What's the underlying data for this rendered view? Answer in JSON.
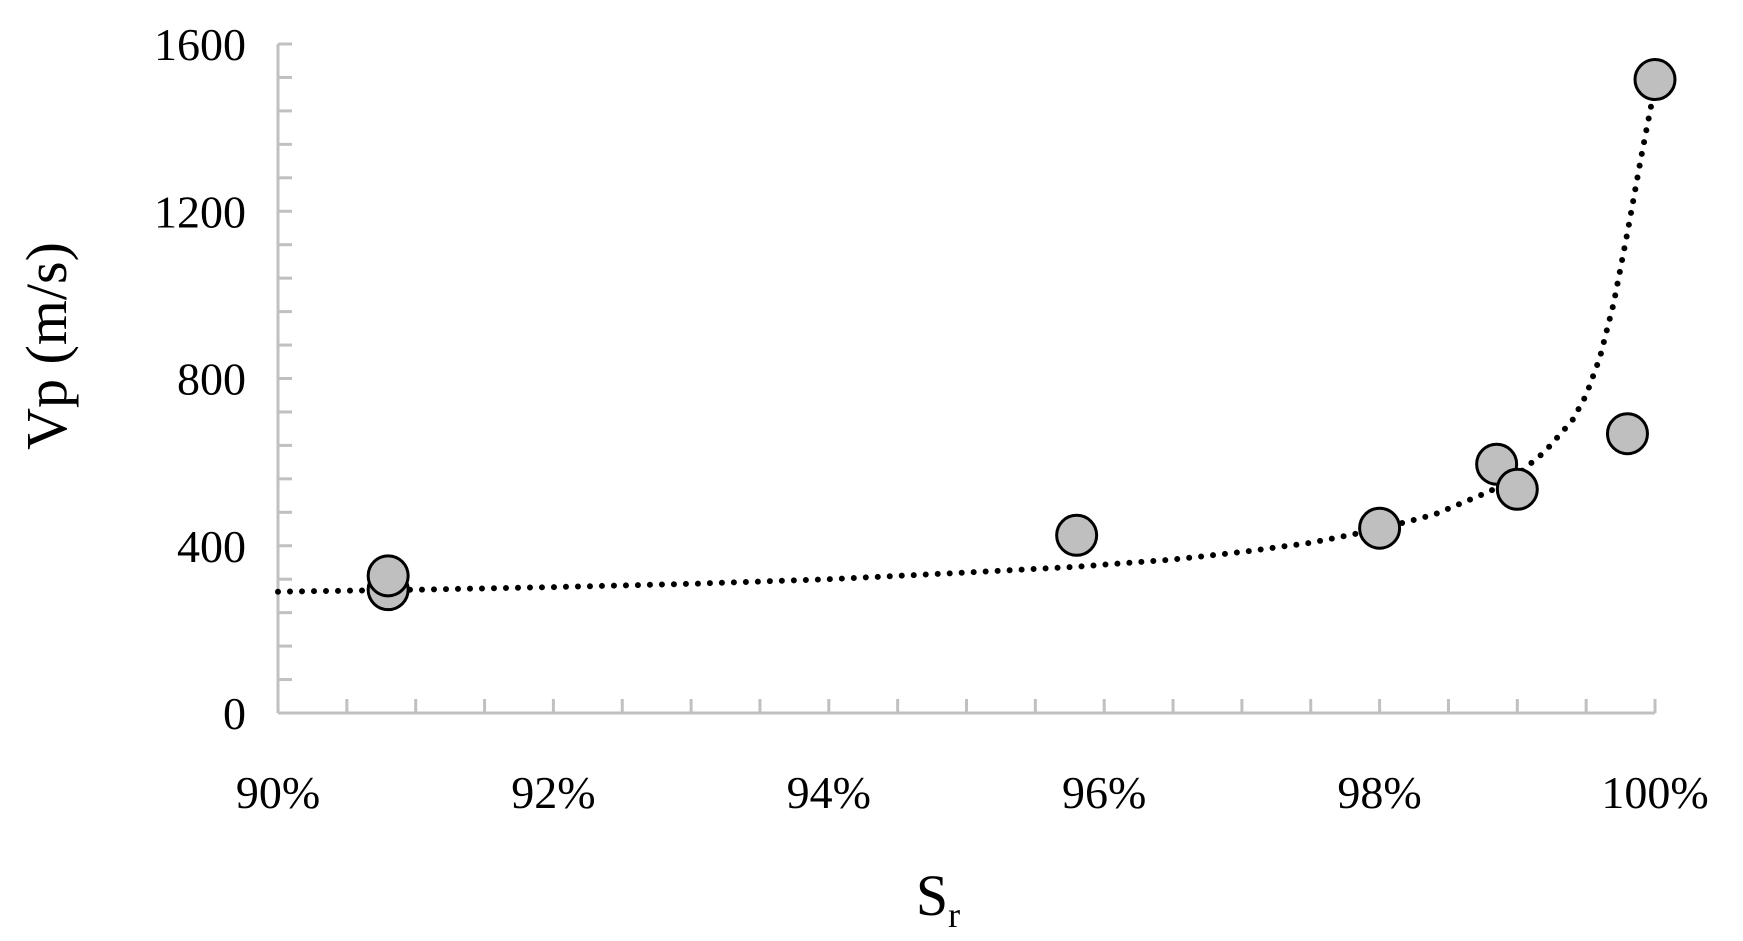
{
  "chart_data": {
    "type": "scatter",
    "xlabel": "S",
    "xlabel_subscript": "r",
    "ylabel": "Vp (m/s)",
    "xlim": [
      0.9,
      1.0
    ],
    "ylim": [
      0,
      1600
    ],
    "x_ticks": [
      0.9,
      0.92,
      0.94,
      0.96,
      0.98,
      1.0
    ],
    "x_tick_labels": [
      "90%",
      "92%",
      "94%",
      "96%",
      "98%",
      "100%"
    ],
    "y_ticks": [
      0,
      400,
      800,
      1200,
      1600
    ],
    "y_tick_labels": [
      "0",
      "400",
      "800",
      "1200",
      "1600"
    ],
    "grid": false,
    "legend": "none",
    "series": [
      {
        "type": "scatter",
        "marker": "circle",
        "marker_fill": "#bfbfbf",
        "marker_edge": "#000000",
        "points": [
          {
            "x": 0.908,
            "y": 295
          },
          {
            "x": 0.908,
            "y": 328
          },
          {
            "x": 0.958,
            "y": 425
          },
          {
            "x": 0.98,
            "y": 442
          },
          {
            "x": 0.9885,
            "y": 595
          },
          {
            "x": 0.99,
            "y": 535
          },
          {
            "x": 0.998,
            "y": 668
          },
          {
            "x": 1.0,
            "y": 1515
          }
        ]
      },
      {
        "type": "trendline",
        "style": "dotted",
        "color": "#000000",
        "points": [
          {
            "x": 0.9,
            "y": 290
          },
          {
            "x": 0.91,
            "y": 295
          },
          {
            "x": 0.92,
            "y": 301
          },
          {
            "x": 0.93,
            "y": 309
          },
          {
            "x": 0.94,
            "y": 320
          },
          {
            "x": 0.95,
            "y": 336
          },
          {
            "x": 0.958,
            "y": 350
          },
          {
            "x": 0.965,
            "y": 367
          },
          {
            "x": 0.97,
            "y": 385
          },
          {
            "x": 0.975,
            "y": 407
          },
          {
            "x": 0.98,
            "y": 440
          },
          {
            "x": 0.984,
            "y": 475
          },
          {
            "x": 0.988,
            "y": 530
          },
          {
            "x": 0.99,
            "y": 570
          },
          {
            "x": 0.992,
            "y": 625
          },
          {
            "x": 0.994,
            "y": 700
          },
          {
            "x": 0.995,
            "y": 760
          },
          {
            "x": 0.996,
            "y": 850
          },
          {
            "x": 0.997,
            "y": 980
          },
          {
            "x": 0.998,
            "y": 1150
          },
          {
            "x": 0.999,
            "y": 1330
          },
          {
            "x": 1.0,
            "y": 1500
          }
        ]
      }
    ]
  }
}
